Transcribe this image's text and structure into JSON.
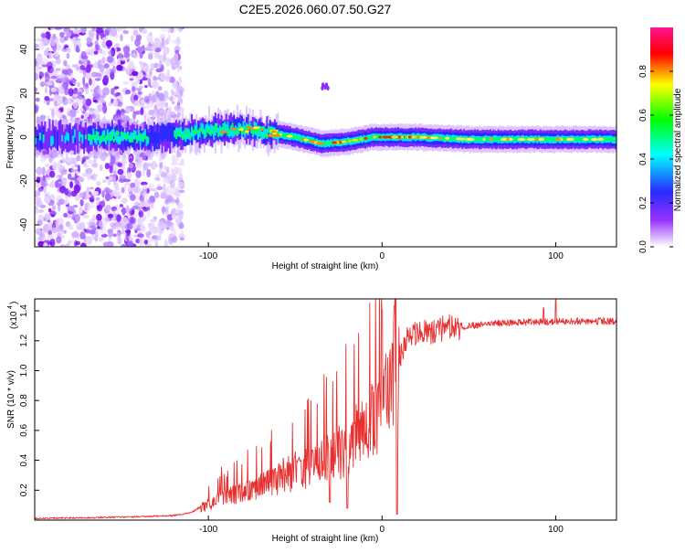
{
  "figure": {
    "title": "C2E5.2026.060.07.50.G27"
  },
  "chart_data": [
    {
      "type": "heatmap",
      "panel": "spectrogram",
      "xlabel": "Height of straight line (km)",
      "ylabel": "Frequency (Hz)",
      "xlim": [
        -200,
        135
      ],
      "ylim": [
        -50,
        50
      ],
      "xticks": [
        -100,
        0,
        100
      ],
      "xtick_labels": [
        "-100",
        "0",
        "100"
      ],
      "yticks": [
        -40,
        -20,
        0,
        20,
        40
      ],
      "ytick_labels": [
        "-40",
        "-20",
        "0",
        "20",
        "40"
      ],
      "colorbar": {
        "label": "Normalized spectral amplitude",
        "range": [
          0,
          1
        ],
        "ticks": [
          0.0,
          0.2,
          0.4,
          0.6,
          0.8
        ],
        "tick_labels": [
          "0.0",
          "0.2",
          "0.4",
          "0.6",
          "0.8"
        ],
        "colors": [
          "#ffffff",
          "#8000ff",
          "#2020ff",
          "#00ffff",
          "#00ff00",
          "#ffff00",
          "#ff0000",
          "#ff00aa"
        ]
      },
      "features": {
        "noise_region_x": [
          -200,
          -115
        ],
        "ridge_center_x": [
          -200,
          -130,
          -100,
          -80,
          -65,
          -50,
          -35,
          -20,
          -5,
          10,
          20,
          50,
          90,
          135
        ],
        "ridge_center_y": [
          0,
          0,
          3,
          4,
          2,
          0,
          -3,
          -2,
          0,
          0,
          0,
          -1,
          -1,
          -1
        ],
        "side_feature": {
          "x": [
            -35,
            -31
          ],
          "y": [
            21,
            24
          ]
        }
      }
    },
    {
      "type": "line",
      "panel": "snr",
      "xlabel": "Height of straight line (km)",
      "ylabel": "SNR (10 * v/v)",
      "scale_label": "(x10",
      "scale_exponent": "4",
      "xlim": [
        -200,
        135
      ],
      "ylim": [
        0,
        1.48
      ],
      "xticks": [
        -100,
        0,
        100
      ],
      "xtick_labels": [
        "-100",
        "0",
        "100"
      ],
      "yticks": [
        0.2,
        0.4,
        0.6,
        0.8,
        1.0,
        1.2,
        1.4
      ],
      "ytick_labels": [
        "0.2",
        "0.4",
        "0.6",
        "0.8",
        "1.0",
        "1.2",
        "1.4"
      ],
      "series": [
        {
          "name": "SNR",
          "color": "#e83030",
          "envelope_x": [
            -200,
            -150,
            -120,
            -110,
            -100,
            -90,
            -80,
            -70,
            -60,
            -50,
            -40,
            -30,
            -20,
            -10,
            0,
            5,
            8,
            10,
            15,
            20,
            30,
            40,
            50,
            60,
            70,
            80,
            90,
            100,
            110,
            120,
            135
          ],
          "envelope_y": [
            0.01,
            0.02,
            0.03,
            0.05,
            0.12,
            0.18,
            0.22,
            0.27,
            0.32,
            0.37,
            0.42,
            0.48,
            0.55,
            0.7,
            0.9,
            1.1,
            1.25,
            1.1,
            1.22,
            1.24,
            1.27,
            1.29,
            1.3,
            1.31,
            1.32,
            1.32,
            1.33,
            1.33,
            1.33,
            1.33,
            1.33
          ],
          "dips": [
            {
              "x": 8.5,
              "y": 0.04
            },
            {
              "x": -30,
              "y": 0.12
            },
            {
              "x": -20,
              "y": 0.08
            }
          ],
          "peaks": [
            {
              "x": 7,
              "y": 1.43
            },
            {
              "x": 0,
              "y": 1.4
            },
            {
              "x": 100,
              "y": 1.48
            },
            {
              "x": 93,
              "y": 1.42
            }
          ]
        }
      ]
    }
  ]
}
